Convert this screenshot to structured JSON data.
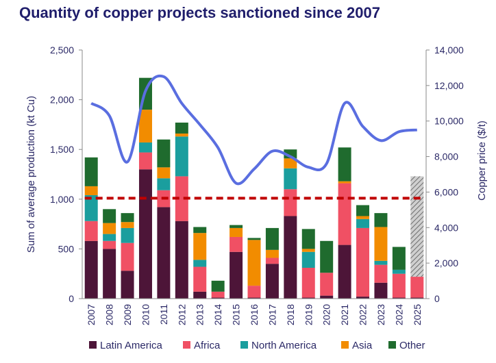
{
  "title": "Quantity of copper projects sanctioned since 2007",
  "chart_data": {
    "type": "bar",
    "stacked": true,
    "categories": [
      "2007",
      "2008",
      "2009",
      "2010",
      "2011",
      "2012",
      "2013",
      "2014",
      "2015",
      "2016",
      "2017",
      "2018",
      "2019",
      "2020",
      "2021",
      "2022",
      "2023",
      "2024",
      "2025"
    ],
    "series": [
      {
        "name": "Latin America",
        "color": "#4d1538",
        "values": [
          580,
          500,
          280,
          1300,
          920,
          780,
          70,
          10,
          470,
          10,
          350,
          830,
          10,
          30,
          540,
          20,
          160,
          10,
          10
        ]
      },
      {
        "name": "Africa",
        "color": "#f05064",
        "values": [
          200,
          80,
          280,
          170,
          170,
          450,
          250,
          60,
          150,
          120,
          60,
          270,
          300,
          230,
          620,
          690,
          180,
          240,
          210
        ]
      },
      {
        "name": "North America",
        "color": "#1a9e9e",
        "values": [
          260,
          70,
          150,
          100,
          120,
          400,
          70,
          0,
          0,
          0,
          0,
          210,
          160,
          0,
          0,
          90,
          40,
          40,
          0
        ]
      },
      {
        "name": "Asia",
        "color": "#f28c00",
        "values": [
          90,
          110,
          60,
          330,
          110,
          30,
          270,
          0,
          90,
          460,
          80,
          100,
          30,
          0,
          20,
          30,
          340,
          0,
          0
        ]
      },
      {
        "name": "Other",
        "color": "#1f6b2e",
        "values": [
          290,
          140,
          90,
          320,
          280,
          110,
          60,
          110,
          30,
          20,
          220,
          90,
          200,
          320,
          340,
          110,
          140,
          230,
          0
        ]
      }
    ],
    "projection": {
      "category": "2025",
      "label_hidden": true,
      "value": 1230,
      "pattern": "hatched grey"
    },
    "reference_line": {
      "value": 1010,
      "style": "dashed",
      "color": "#c00000"
    },
    "copper_price": {
      "name": "Copper price",
      "color": "#5a6ee0",
      "values": [
        11000,
        10300,
        7700,
        11700,
        12500,
        11000,
        9800,
        8500,
        6500,
        7300,
        8300,
        8000,
        7400,
        7600,
        11000,
        9700,
        8900,
        9400,
        9500
      ]
    },
    "ylabel": "Sum of average production (kt Cu)",
    "ylim": [
      0,
      2500
    ],
    "yticks": [
      "0",
      "500",
      "1,000",
      "1,500",
      "2,000",
      "2,500"
    ],
    "y2label": "Copper price ($/t)",
    "y2lim": [
      0,
      14000
    ],
    "y2ticks": [
      "0",
      "2,000",
      "4,000",
      "6,000",
      "8,000",
      "10,000",
      "12,000",
      "14,000"
    ],
    "legend_position": "bottom"
  }
}
